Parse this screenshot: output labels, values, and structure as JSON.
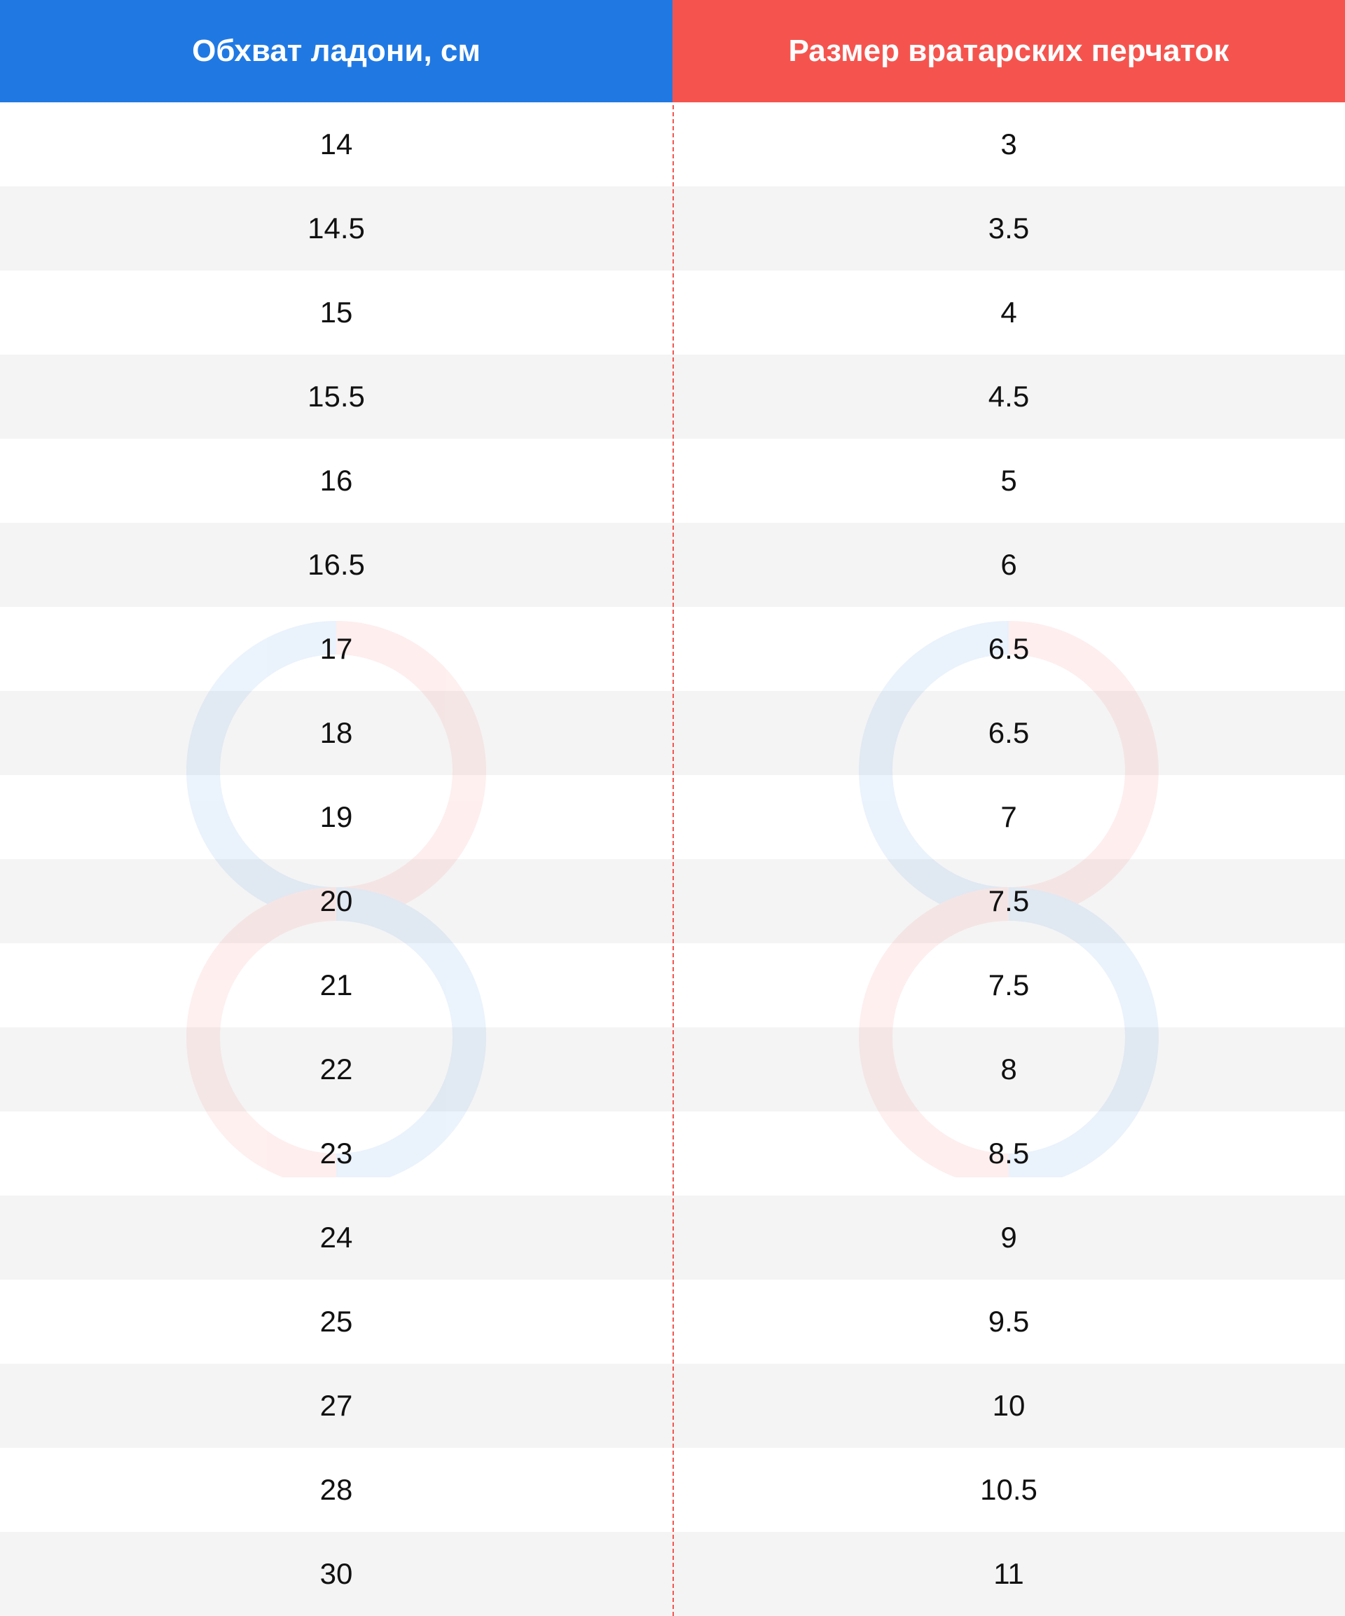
{
  "colors": {
    "header_left": "#2079e3",
    "header_right": "#f5544e",
    "row_alt": "#f4f4f4",
    "divider": "#f5544e"
  },
  "table": {
    "headers": [
      "Обхват ладони, см",
      "Размер вратарских перчаток"
    ],
    "rows": [
      [
        "14",
        "3"
      ],
      [
        "14.5",
        "3.5"
      ],
      [
        "15",
        "4"
      ],
      [
        "15.5",
        "4.5"
      ],
      [
        "16",
        "5"
      ],
      [
        "16.5",
        "6"
      ],
      [
        "17",
        "6.5"
      ],
      [
        "18",
        "6.5"
      ],
      [
        "19",
        "7"
      ],
      [
        "20",
        "7.5"
      ],
      [
        "21",
        "7.5"
      ],
      [
        "22",
        "8"
      ],
      [
        "23",
        "8.5"
      ],
      [
        "24",
        "9"
      ],
      [
        "25",
        "9.5"
      ],
      [
        "27",
        "10"
      ],
      [
        "28",
        "10.5"
      ],
      [
        "30",
        "11"
      ]
    ]
  },
  "watermark": {
    "icon": "figure-eight-logo-icon"
  }
}
